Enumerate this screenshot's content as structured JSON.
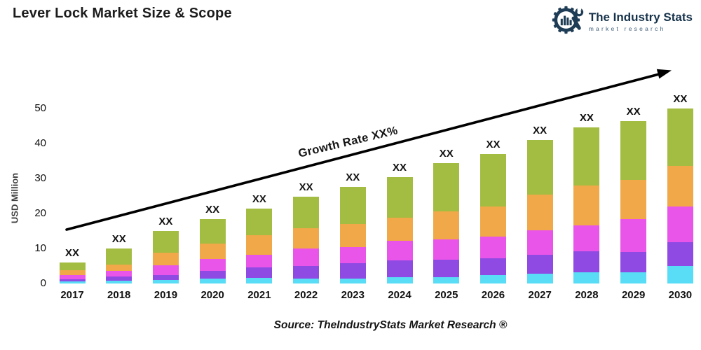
{
  "header": {
    "title": "Lever Lock Market Size & Scope"
  },
  "logo": {
    "name": "The Industry Stats",
    "tagline": "market research",
    "color": "#1e3c55",
    "icon": "gear-wrench-barchart-icon"
  },
  "chart_data": {
    "type": "bar",
    "subtype": "stacked",
    "title": "Lever Lock Market Size & Scope",
    "xlabel": "",
    "ylabel": "USD Million",
    "ylim": [
      0,
      50
    ],
    "yticks": [
      0,
      10,
      20,
      30,
      40,
      50
    ],
    "grid": false,
    "legend": "none",
    "categories": [
      "2017",
      "2018",
      "2019",
      "2020",
      "2021",
      "2022",
      "2023",
      "2024",
      "2025",
      "2026",
      "2027",
      "2028",
      "2029",
      "2030"
    ],
    "bar_value_label": "XX",
    "annotation": "Growth Rate XX%",
    "annotation_style": "rising-arrow",
    "series": [
      {
        "name": "segment-cyan",
        "color": "#59dcf5",
        "values": [
          0.6,
          0.8,
          1.0,
          1.4,
          1.6,
          1.5,
          1.4,
          1.8,
          1.8,
          2.4,
          2.9,
          3.3,
          3.3,
          5.0
        ]
      },
      {
        "name": "segment-purple",
        "color": "#8e4ae3",
        "values": [
          0.7,
          1.2,
          1.4,
          2.2,
          3.0,
          3.5,
          4.5,
          4.9,
          5.1,
          4.9,
          5.3,
          5.9,
          5.7,
          6.9
        ]
      },
      {
        "name": "segment-magenta",
        "color": "#e955e8",
        "values": [
          1.2,
          1.7,
          2.9,
          3.5,
          3.7,
          5.1,
          4.5,
          5.5,
          5.7,
          6.1,
          7.1,
          7.5,
          9.4,
          10.2
        ]
      },
      {
        "name": "segment-orange",
        "color": "#f0a848",
        "values": [
          1.4,
          1.8,
          3.6,
          4.3,
          5.6,
          5.7,
          6.7,
          6.7,
          8.1,
          8.7,
          10.2,
          11.4,
          11.2,
          11.6
        ]
      },
      {
        "name": "segment-green",
        "color": "#a2bd41",
        "values": [
          2.1,
          4.5,
          6.1,
          7.1,
          7.6,
          9.1,
          10.6,
          11.6,
          13.8,
          15.0,
          15.6,
          16.5,
          16.9,
          16.3
        ]
      }
    ],
    "totals": [
      6.0,
      10.0,
      15.0,
      18.5,
      21.5,
      24.9,
      27.7,
      30.5,
      34.5,
      37.1,
      41.1,
      44.6,
      46.5,
      50.0
    ]
  },
  "footer": {
    "source": "Source: TheIndustryStats Market Research ®"
  }
}
